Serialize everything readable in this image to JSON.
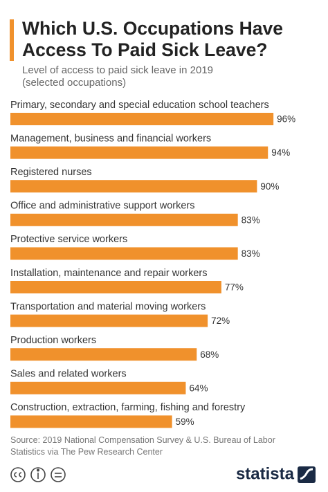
{
  "chart_data": {
    "type": "hbar",
    "title": "Which U.S. Occupations Have Access To Paid Sick Leave?",
    "subtitle": "Level of access to paid sick leave in 2019 (selected occupations)",
    "categories": [
      "Primary, secondary and special education school teachers",
      "Management, business and financial workers",
      "Registered nurses",
      "Office and administrative support workers",
      "Protective service workers",
      "Installation, maintenance and repair workers",
      "Transportation and material moving workers",
      "Production workers",
      "Sales and related workers",
      "Construction, extraction, farming, fishing and forestry"
    ],
    "values": [
      96,
      94,
      90,
      83,
      83,
      77,
      72,
      68,
      64,
      59
    ],
    "value_labels": [
      "96%",
      "94%",
      "90%",
      "83%",
      "83%",
      "77%",
      "72%",
      "68%",
      "64%",
      "59%"
    ],
    "color": "#f0912c",
    "xlim": [
      0,
      100
    ],
    "source": "Source: 2019 National Compensation Survey & U.S. Bureau of Labor Statistics via The Pew Research Center",
    "brand": "statista"
  }
}
